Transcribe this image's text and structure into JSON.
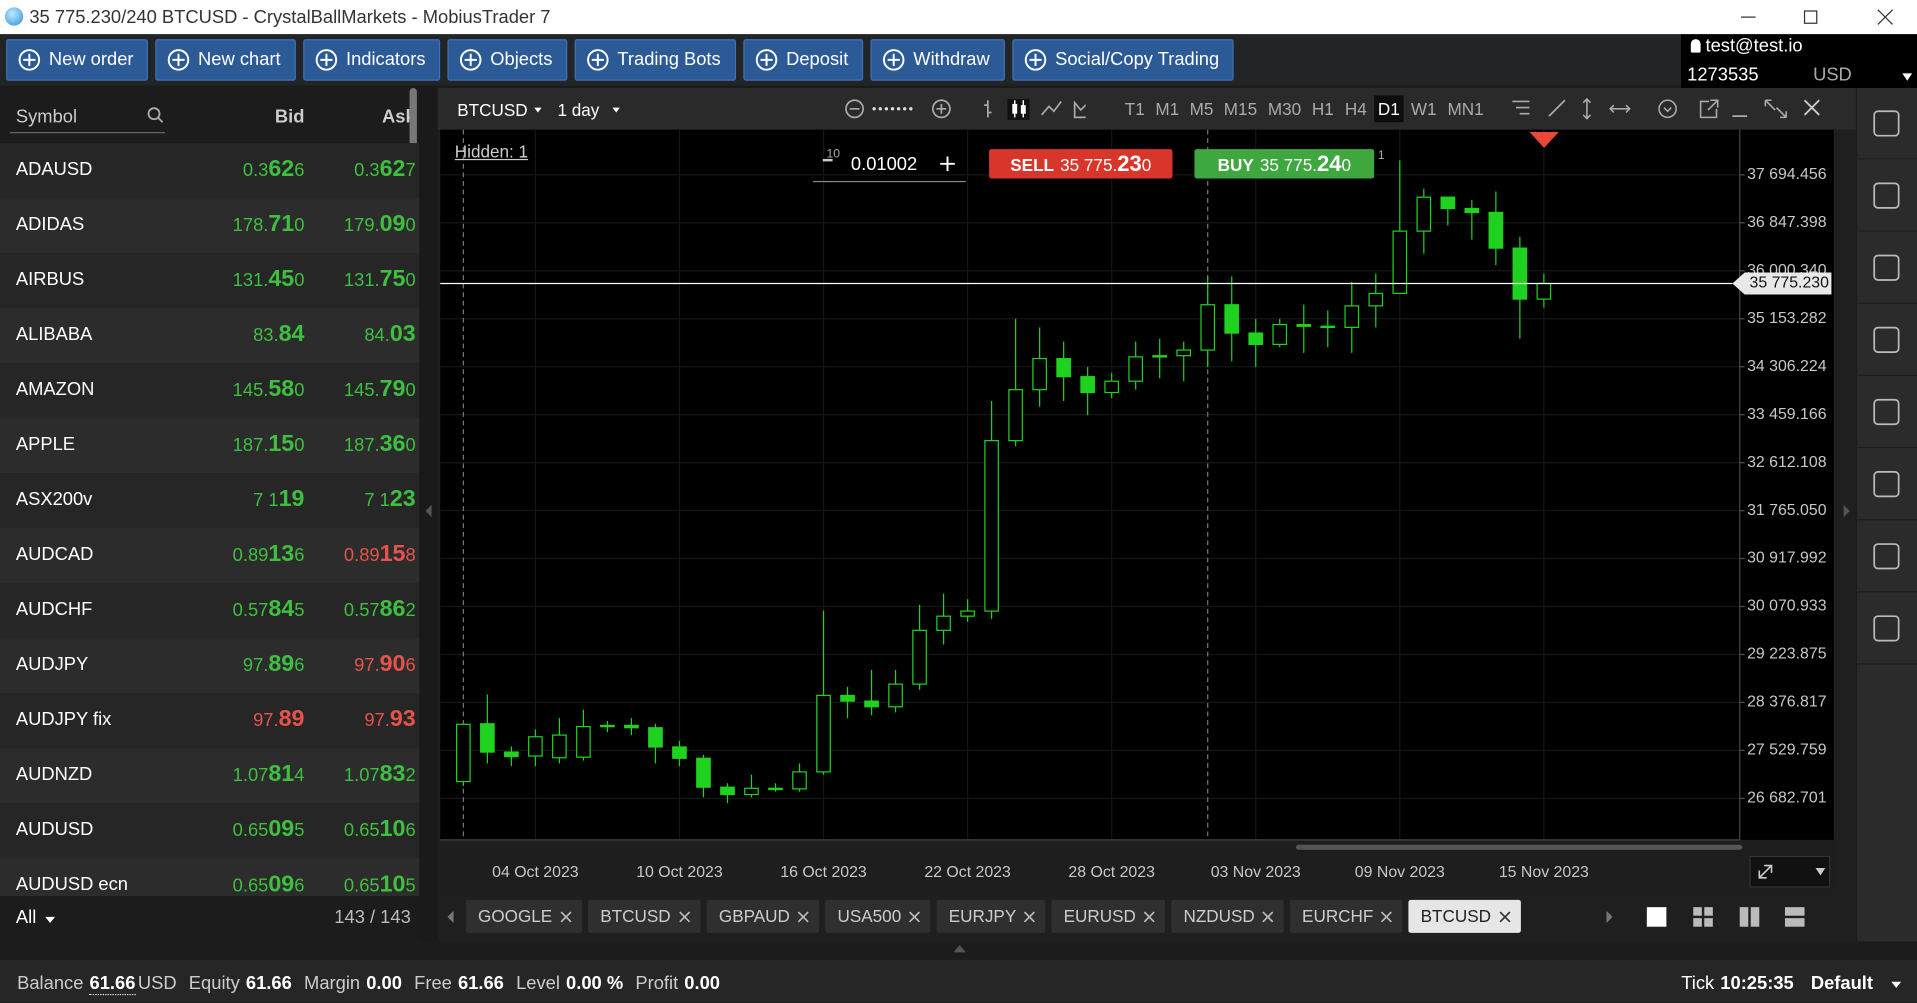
{
  "window": {
    "title": "35 775.230/240 BTCUSD - CrystalBallMarkets - MobiusTrader 7"
  },
  "toolbar": {
    "buttons": [
      "New order",
      "New chart",
      "Indicators",
      "Objects",
      "Trading Bots",
      "Deposit",
      "Withdraw",
      "Social/Copy Trading"
    ]
  },
  "account": {
    "email": "test@test.io",
    "number": "1273535",
    "currency": "USD"
  },
  "watchlist": {
    "headers": {
      "symbol": "Symbol",
      "bid": "Bid",
      "ask": "Ask"
    },
    "rows": [
      {
        "symbol": "ADAUSD",
        "bid": "0.3626",
        "ask": "0.3627",
        "bid_color": "#3fbf3f",
        "ask_color": "#3fbf3f"
      },
      {
        "symbol": "ADIDAS",
        "bid": "178.710",
        "ask": "179.090",
        "bid_color": "#3fbf3f",
        "ask_color": "#3fbf3f"
      },
      {
        "symbol": "AIRBUS",
        "bid": "131.450",
        "ask": "131.750",
        "bid_color": "#3fbf3f",
        "ask_color": "#3fbf3f"
      },
      {
        "symbol": "ALIBABA",
        "bid": "83.84",
        "ask": "84.03",
        "bid_color": "#3fbf3f",
        "ask_color": "#3fbf3f"
      },
      {
        "symbol": "AMAZON",
        "bid": "145.580",
        "ask": "145.790",
        "bid_color": "#3fbf3f",
        "ask_color": "#3fbf3f"
      },
      {
        "symbol": "APPLE",
        "bid": "187.150",
        "ask": "187.360",
        "bid_color": "#3fbf3f",
        "ask_color": "#3fbf3f"
      },
      {
        "symbol": "ASX200v",
        "bid": "7 119",
        "ask": "7 123",
        "bid_color": "#3fbf3f",
        "ask_color": "#3fbf3f"
      },
      {
        "symbol": "AUDCAD",
        "bid": "0.89136",
        "ask": "0.89158",
        "bid_color": "#3fbf3f",
        "ask_color": "#e5534b"
      },
      {
        "symbol": "AUDCHF",
        "bid": "0.57845",
        "ask": "0.57862",
        "bid_color": "#3fbf3f",
        "ask_color": "#3fbf3f"
      },
      {
        "symbol": "AUDJPY",
        "bid": "97.896",
        "ask": "97.906",
        "bid_color": "#3fbf3f",
        "ask_color": "#e5534b"
      },
      {
        "symbol": "AUDJPY fix",
        "bid": "97.89",
        "ask": "97.93",
        "bid_color": "#e5534b",
        "ask_color": "#e5534b"
      },
      {
        "symbol": "AUDNZD",
        "bid": "1.07814",
        "ask": "1.07832",
        "bid_color": "#3fbf3f",
        "ask_color": "#3fbf3f"
      },
      {
        "symbol": "AUDUSD",
        "bid": "0.65095",
        "ask": "0.65106",
        "bid_color": "#3fbf3f",
        "ask_color": "#3fbf3f"
      },
      {
        "symbol": "AUDUSD ecn",
        "bid": "0.65096",
        "ask": "0.65105",
        "bid_color": "#3fbf3f",
        "ask_color": "#3fbf3f"
      }
    ],
    "filter": "All",
    "count": "143 / 143"
  },
  "chart_panel": {
    "symbol": "BTCUSD",
    "timeframe": "1 day",
    "timeframes": [
      "T1",
      "M1",
      "M5",
      "M15",
      "M30",
      "H1",
      "H4",
      "D1",
      "W1",
      "MN1"
    ],
    "active_timeframe": 7,
    "hidden": "Hidden: 1",
    "lot": "0.01002",
    "lot_exponent": "10",
    "sell": {
      "label": "SELL",
      "price": "35 775.230"
    },
    "buy": {
      "label": "BUY",
      "price": "35 775.240",
      "count": "1"
    },
    "tabs": [
      "GOOGLE",
      "BTCUSD",
      "GBPAUD",
      "USA500",
      "EURJPY",
      "EURUSD",
      "NZDUSD",
      "EURCHF",
      "BTCUSD"
    ],
    "active_tab": 8
  },
  "chart_data": {
    "type": "candlestick",
    "color": "#1fd21f",
    "grid": true,
    "categories": [
      null,
      null,
      null,
      "04 Oct 2023",
      null,
      null,
      null,
      null,
      null,
      "10 Oct 2023",
      null,
      null,
      null,
      null,
      null,
      "16 Oct 2023",
      null,
      null,
      null,
      null,
      null,
      "22 Oct 2023",
      null,
      null,
      null,
      null,
      null,
      "28 Oct 2023",
      null,
      null,
      null,
      null,
      null,
      "03 Nov 2023",
      null,
      null,
      null,
      null,
      null,
      "09 Nov 2023",
      null,
      null,
      null,
      null,
      null,
      "15 Nov 2023"
    ],
    "open": [
      26980,
      28000,
      27500,
      27430,
      27400,
      27410,
      27950,
      27970,
      27930,
      27590,
      27390,
      26880,
      26750,
      26860,
      26850,
      27150,
      28500,
      28400,
      28300,
      28700,
      29650,
      29900,
      29990,
      33000,
      33900,
      34450,
      34130,
      33850,
      34050,
      34480,
      34500,
      34600,
      35400,
      34900,
      34700,
      35050,
      35020,
      35000,
      35380,
      35600,
      36700,
      37300,
      37100,
      37030,
      36400,
      35500
    ],
    "high": [
      28000,
      28520,
      27600,
      27900,
      28100,
      28250,
      28050,
      28100,
      28000,
      27700,
      27450,
      26950,
      27100,
      26950,
      27300,
      30000,
      28650,
      28950,
      28950,
      30100,
      30300,
      30200,
      33700,
      35150,
      35000,
      34750,
      34300,
      34200,
      34750,
      34800,
      34750,
      35900,
      35900,
      35150,
      35150,
      35400,
      35300,
      35800,
      35950,
      37950,
      37450,
      37300,
      37250,
      37400,
      36600,
      35950
    ],
    "low": [
      26900,
      27300,
      27250,
      27250,
      27300,
      27350,
      27850,
      27800,
      27300,
      27250,
      26700,
      26600,
      26700,
      26800,
      26800,
      27100,
      28100,
      28150,
      28200,
      28600,
      29400,
      29800,
      29850,
      32900,
      33600,
      33700,
      33450,
      33750,
      33900,
      34100,
      34050,
      34300,
      34400,
      34300,
      34650,
      34550,
      34650,
      34550,
      35000,
      35600,
      36300,
      36800,
      36550,
      36100,
      34800,
      35350
    ],
    "close": [
      27990,
      27500,
      27420,
      27770,
      27800,
      27950,
      27970,
      27930,
      27590,
      27390,
      26880,
      26750,
      26860,
      26850,
      27150,
      28500,
      28400,
      28300,
      28700,
      29650,
      29900,
      29990,
      33000,
      33900,
      34450,
      34130,
      33850,
      34050,
      34480,
      34500,
      34600,
      35400,
      34900,
      34700,
      35050,
      35020,
      35000,
      35380,
      35600,
      36700,
      37300,
      37100,
      37030,
      36400,
      35500,
      35775.23
    ],
    "ylim": [
      25948.6,
      38493.4
    ],
    "yticks": [
      {
        "value": 37694.456,
        "label": "37 694.456"
      },
      {
        "value": 36847.398,
        "label": "36 847.398"
      },
      {
        "value": 36000.34,
        "label": "36 000.340"
      },
      {
        "value": 35153.282,
        "label": "35 153.282"
      },
      {
        "value": 34306.224,
        "label": "34 306.224"
      },
      {
        "value": 33459.166,
        "label": "33 459.166"
      },
      {
        "value": 32612.108,
        "label": "32 612.108"
      },
      {
        "value": 31765.05,
        "label": "31 765.050"
      },
      {
        "value": 30917.992,
        "label": "30 917.992"
      },
      {
        "value": 30070.933,
        "label": "30 070.933"
      },
      {
        "value": 29223.875,
        "label": "29 223.875"
      },
      {
        "value": 28376.817,
        "label": "28 376.817"
      },
      {
        "value": 27529.759,
        "label": "27 529.759"
      },
      {
        "value": 26682.701,
        "label": "26 682.701"
      }
    ],
    "current_price": {
      "value": 35775.23,
      "label": "35 775.230"
    }
  },
  "status": {
    "items": [
      {
        "label": "Balance",
        "value": "61.66",
        "unit": "USD"
      },
      {
        "label": "Equity",
        "value": "61.66"
      },
      {
        "label": "Margin",
        "value": "0.00"
      },
      {
        "label": "Free",
        "value": "61.66"
      },
      {
        "label": "Level",
        "value": "0.00 %"
      },
      {
        "label": "Profit",
        "value": "0.00"
      }
    ],
    "tick": {
      "label": "Tick",
      "value": "10:25:35"
    },
    "profile": "Default"
  }
}
